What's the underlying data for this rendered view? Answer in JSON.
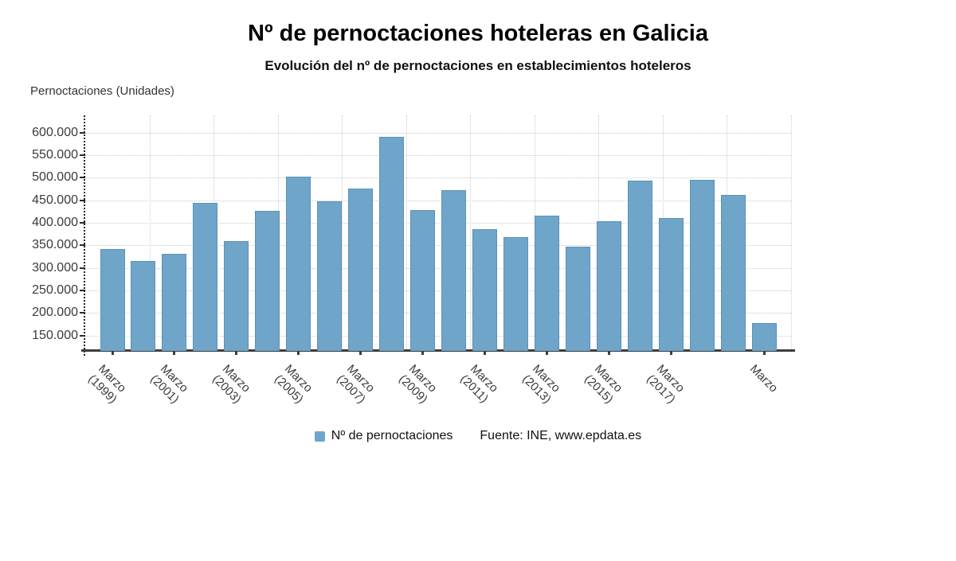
{
  "header": {
    "title": "Nº de pernoctaciones hoteleras en Galicia",
    "subtitle": "Evolución del nº de pernoctaciones en establecimientos hoteleros"
  },
  "axis": {
    "y_title": "Pernoctaciones (Unidades)"
  },
  "legend": {
    "series_label": "Nº de pernoctaciones",
    "source": "Fuente: INE, www.epdata.es"
  },
  "colors": {
    "bar": "#6fa5c9",
    "bar_border": "#5a91b9",
    "grid": "#cccccc",
    "axis_line": "#3c3c3c",
    "tick_text": "#3a3a3a",
    "title_text": "#000000"
  },
  "chart_data": {
    "type": "bar",
    "title": "Nº de pernoctaciones hoteleras en Galicia",
    "subtitle": "Evolución del nº de pernoctaciones en establecimientos hoteleros",
    "xlabel": "",
    "ylabel": "Pernoctaciones (Unidades)",
    "grid": true,
    "legend_position": "bottom",
    "source": "Fuente: INE, www.epdata.es",
    "series": [
      {
        "name": "Nº de pernoctaciones",
        "values": [
          342000,
          316000,
          332000,
          444000,
          359000,
          426000,
          503000,
          448000,
          476000,
          590000,
          428000,
          473000,
          386000,
          368000,
          416000,
          347000,
          403000,
          494000,
          411000,
          496000,
          462000,
          177000
        ]
      }
    ],
    "n_bars": 22,
    "ylim": [
      116000,
      638000
    ],
    "y_ticks": [
      {
        "value": 600000,
        "label": "600.000"
      },
      {
        "value": 550000,
        "label": "550.000"
      },
      {
        "value": 500000,
        "label": "500.000"
      },
      {
        "value": 450000,
        "label": "450.000"
      },
      {
        "value": 400000,
        "label": "400.000"
      },
      {
        "value": 350000,
        "label": "350.000"
      },
      {
        "value": 300000,
        "label": "300.000"
      },
      {
        "value": 250000,
        "label": "250.000"
      },
      {
        "value": 200000,
        "label": "200.000"
      },
      {
        "value": 150000,
        "label": "150.000"
      }
    ],
    "x_ticks": [
      {
        "index": 0,
        "lines": [
          "Marzo",
          "(1999)"
        ]
      },
      {
        "index": 2,
        "lines": [
          "Marzo",
          "(2001)"
        ]
      },
      {
        "index": 4,
        "lines": [
          "Marzo",
          "(2003)"
        ]
      },
      {
        "index": 6,
        "lines": [
          "Marzo",
          "(2005)"
        ]
      },
      {
        "index": 8,
        "lines": [
          "Marzo",
          "(2007)"
        ]
      },
      {
        "index": 10,
        "lines": [
          "Marzo",
          "(2009)"
        ]
      },
      {
        "index": 12,
        "lines": [
          "Marzo",
          "(2011)"
        ]
      },
      {
        "index": 14,
        "lines": [
          "Marzo",
          "(2013)"
        ]
      },
      {
        "index": 16,
        "lines": [
          "Marzo",
          "(2015)"
        ]
      },
      {
        "index": 18,
        "lines": [
          "Marzo",
          "(2017)"
        ]
      },
      {
        "index": 21,
        "lines": [
          "Marzo"
        ]
      }
    ],
    "v_gridline_count": 11
  }
}
